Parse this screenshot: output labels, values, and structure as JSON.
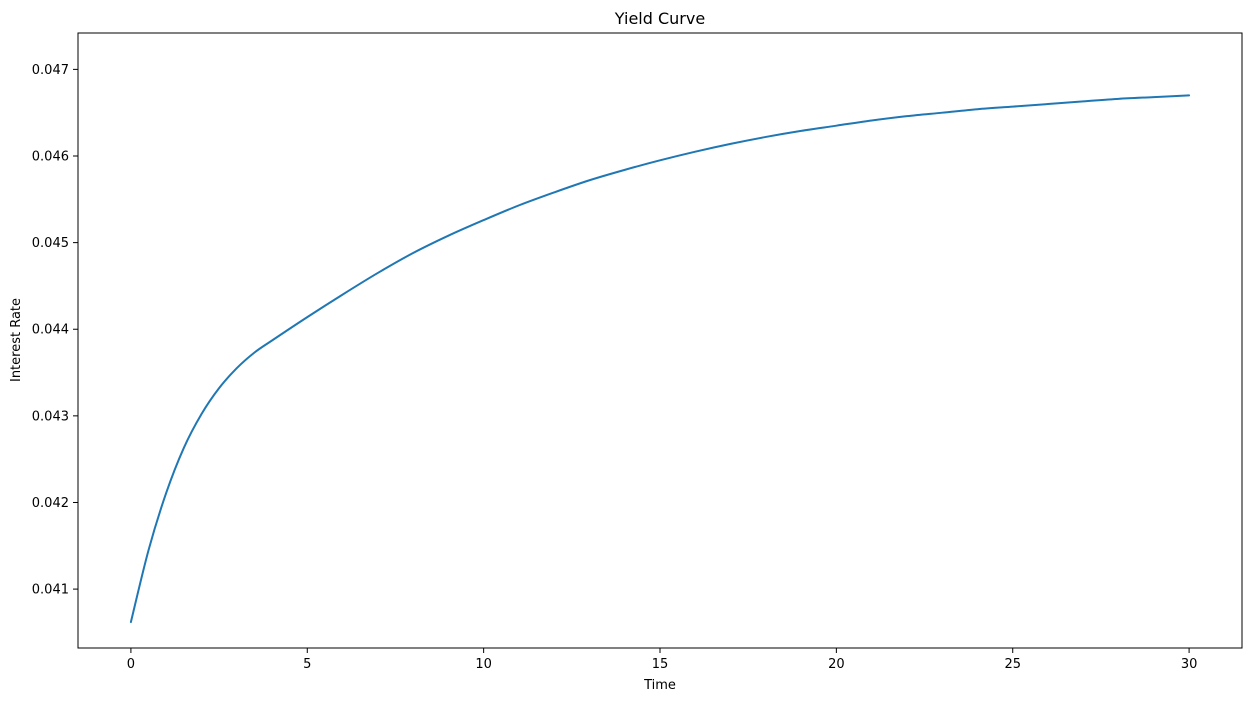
{
  "chart_data": {
    "type": "line",
    "title": "Yield Curve",
    "xlabel": "Time",
    "ylabel": "Interest Rate",
    "xlim": [
      -1.5,
      31.5
    ],
    "ylim": [
      0.04032,
      0.04742
    ],
    "xticks": [
      0,
      5,
      10,
      15,
      20,
      25,
      30
    ],
    "xtick_labels": [
      "0",
      "5",
      "10",
      "15",
      "20",
      "25",
      "30"
    ],
    "yticks": [
      0.041,
      0.042,
      0.043,
      0.044,
      0.045,
      0.046,
      0.047
    ],
    "ytick_labels": [
      "0.041",
      "0.042",
      "0.043",
      "0.044",
      "0.045",
      "0.046",
      "0.047"
    ],
    "grid": false,
    "series": [
      {
        "color": "#1f77b4",
        "x": [
          0,
          0.5,
          1,
          1.5,
          2,
          2.5,
          3,
          3.5,
          4,
          5,
          6,
          7,
          8,
          9,
          10,
          11,
          12,
          13,
          14,
          15,
          16,
          17,
          18,
          19,
          20,
          21,
          22,
          23,
          24,
          25,
          26,
          27,
          28,
          29,
          30
        ],
        "values": [
          0.04062,
          0.04145,
          0.04211,
          0.04263,
          0.04302,
          0.04332,
          0.04355,
          0.04373,
          0.04387,
          0.04414,
          0.0444,
          0.04465,
          0.04488,
          0.04508,
          0.04526,
          0.04543,
          0.04558,
          0.04572,
          0.04584,
          0.04595,
          0.04605,
          0.04614,
          0.04622,
          0.04629,
          0.04635,
          0.04641,
          0.04646,
          0.0465,
          0.04654,
          0.04657,
          0.0466,
          0.04663,
          0.04666,
          0.04668,
          0.0467
        ]
      }
    ]
  }
}
